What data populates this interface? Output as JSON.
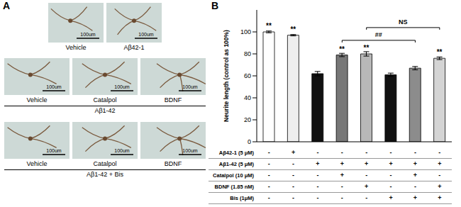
{
  "panel_a": {
    "label": "A",
    "scale_bar": "100um",
    "rows": [
      {
        "images": [
          "Vehicle",
          "Aβ42-1"
        ]
      },
      {
        "images": [
          "Vehicle",
          "Catalpol",
          "BDNF"
        ],
        "caption": "Aβ1-42"
      },
      {
        "images": [
          "Vehicle",
          "Catalpol",
          "BDNF"
        ],
        "caption": "Aβ1-42 + Bis"
      }
    ]
  },
  "chart_data": {
    "panel_label": "B",
    "type": "bar",
    "y_label": "Neurite length (control as 100%)",
    "categories": [
      null,
      null,
      null,
      null,
      null,
      null,
      null,
      null
    ],
    "values": [
      100,
      97,
      62,
      79,
      80,
      61,
      67,
      76
    ],
    "errors": [
      0.8,
      0.6,
      2,
      1.5,
      2,
      1.5,
      1.5,
      1.2
    ],
    "colors": [
      "#ffffff",
      "#eeeeee",
      "#111111",
      "#777777",
      "#b8b8b8",
      "#111111",
      "#8c8c8c",
      "#d4d4d4"
    ],
    "ylim": [
      0,
      120
    ],
    "yticks": [
      0,
      20,
      40,
      60,
      80,
      100
    ],
    "grid": false,
    "tick_labels": "y",
    "significance": [
      "**",
      "**",
      null,
      "**",
      "**",
      null,
      null,
      "**"
    ],
    "comparisons": [
      {
        "from": 3,
        "to": 6,
        "label": "##"
      },
      {
        "from": 4,
        "to": 7,
        "label": "NS"
      }
    ],
    "conditions": [
      {
        "label": "Aβ42-1 (5 μM)",
        "signs": [
          "-",
          "+",
          "-",
          "-",
          "-",
          "-",
          "-",
          "-"
        ]
      },
      {
        "label": "Aβ1-42 (5 μM)",
        "signs": [
          "-",
          "-",
          "+",
          "+",
          "+",
          "+",
          "+",
          "+"
        ]
      },
      {
        "label": "Catalpol (10 μM)",
        "signs": [
          "-",
          "-",
          "-",
          "+",
          "-",
          "-",
          "+",
          "-"
        ]
      },
      {
        "label": "BDNF (1.85 nM)",
        "signs": [
          "-",
          "-",
          "-",
          "-",
          "+",
          "-",
          "-",
          "+"
        ]
      },
      {
        "label": "Bis (1μM)",
        "signs": [
          "-",
          "-",
          "-",
          "-",
          "-",
          "+",
          "+",
          "+"
        ]
      }
    ]
  }
}
